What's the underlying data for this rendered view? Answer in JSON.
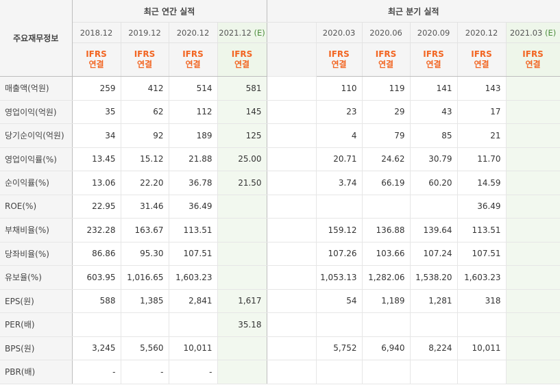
{
  "header": {
    "corner_label": "주요재무정보",
    "annual_group_label": "최근 연간 실적",
    "quarterly_group_label": "최근 분기 실적",
    "annual_periods": [
      {
        "label": "2018.12",
        "est": ""
      },
      {
        "label": "2019.12",
        "est": ""
      },
      {
        "label": "2020.12",
        "est": ""
      },
      {
        "label": "2021.12",
        "est": "(E)"
      }
    ],
    "quarterly_periods": [
      {
        "label": "2020.03",
        "est": ""
      },
      {
        "label": "2020.06",
        "est": ""
      },
      {
        "label": "2020.09",
        "est": ""
      },
      {
        "label": "2020.12",
        "est": ""
      },
      {
        "label": "2021.03",
        "est": "(E)"
      }
    ],
    "ifrs_top": "IFRS",
    "ifrs_bottom": "연결"
  },
  "colors": {
    "ifrs_label": "#f26522",
    "estimate_label": "#4a8c3a",
    "estimate_cell_bg": "#f2f8ef",
    "header_bg": "#f5f5f5"
  },
  "rows": [
    {
      "label": "매출액(억원)",
      "annual": [
        "259",
        "412",
        "514",
        "581"
      ],
      "quarterly": [
        "110",
        "119",
        "141",
        "143",
        ""
      ]
    },
    {
      "label": "영업이익(억원)",
      "annual": [
        "35",
        "62",
        "112",
        "145"
      ],
      "quarterly": [
        "23",
        "29",
        "43",
        "17",
        ""
      ]
    },
    {
      "label": "당기순이익(억원)",
      "annual": [
        "34",
        "92",
        "189",
        "125"
      ],
      "quarterly": [
        "4",
        "79",
        "85",
        "21",
        ""
      ]
    },
    {
      "label": "영업이익률(%)",
      "annual": [
        "13.45",
        "15.12",
        "21.88",
        "25.00"
      ],
      "quarterly": [
        "20.71",
        "24.62",
        "30.79",
        "11.70",
        ""
      ]
    },
    {
      "label": "순이익률(%)",
      "annual": [
        "13.06",
        "22.20",
        "36.78",
        "21.50"
      ],
      "quarterly": [
        "3.74",
        "66.19",
        "60.20",
        "14.59",
        ""
      ]
    },
    {
      "label": "ROE(%)",
      "annual": [
        "22.95",
        "31.46",
        "36.49",
        ""
      ],
      "quarterly": [
        "",
        "",
        "",
        "36.49",
        ""
      ]
    },
    {
      "label": "부채비율(%)",
      "annual": [
        "232.28",
        "163.67",
        "113.51",
        ""
      ],
      "quarterly": [
        "159.12",
        "136.88",
        "139.64",
        "113.51",
        ""
      ]
    },
    {
      "label": "당좌비율(%)",
      "annual": [
        "86.86",
        "95.30",
        "107.51",
        ""
      ],
      "quarterly": [
        "107.26",
        "103.66",
        "107.24",
        "107.51",
        ""
      ]
    },
    {
      "label": "유보율(%)",
      "annual": [
        "603.95",
        "1,016.65",
        "1,603.23",
        ""
      ],
      "quarterly": [
        "1,053.13",
        "1,282.06",
        "1,538.20",
        "1,603.23",
        ""
      ]
    },
    {
      "label": "EPS(원)",
      "annual": [
        "588",
        "1,385",
        "2,841",
        "1,617"
      ],
      "quarterly": [
        "54",
        "1,189",
        "1,281",
        "318",
        ""
      ]
    },
    {
      "label": "PER(배)",
      "annual": [
        "",
        "",
        "",
        "35.18"
      ],
      "quarterly": [
        "",
        "",
        "",
        "",
        ""
      ]
    },
    {
      "label": "BPS(원)",
      "annual": [
        "3,245",
        "5,560",
        "10,011",
        ""
      ],
      "quarterly": [
        "5,752",
        "6,940",
        "8,224",
        "10,011",
        ""
      ]
    },
    {
      "label": "PBR(배)",
      "annual": [
        "-",
        "-",
        "-",
        ""
      ],
      "quarterly": [
        "",
        "",
        "",
        "",
        ""
      ]
    }
  ]
}
